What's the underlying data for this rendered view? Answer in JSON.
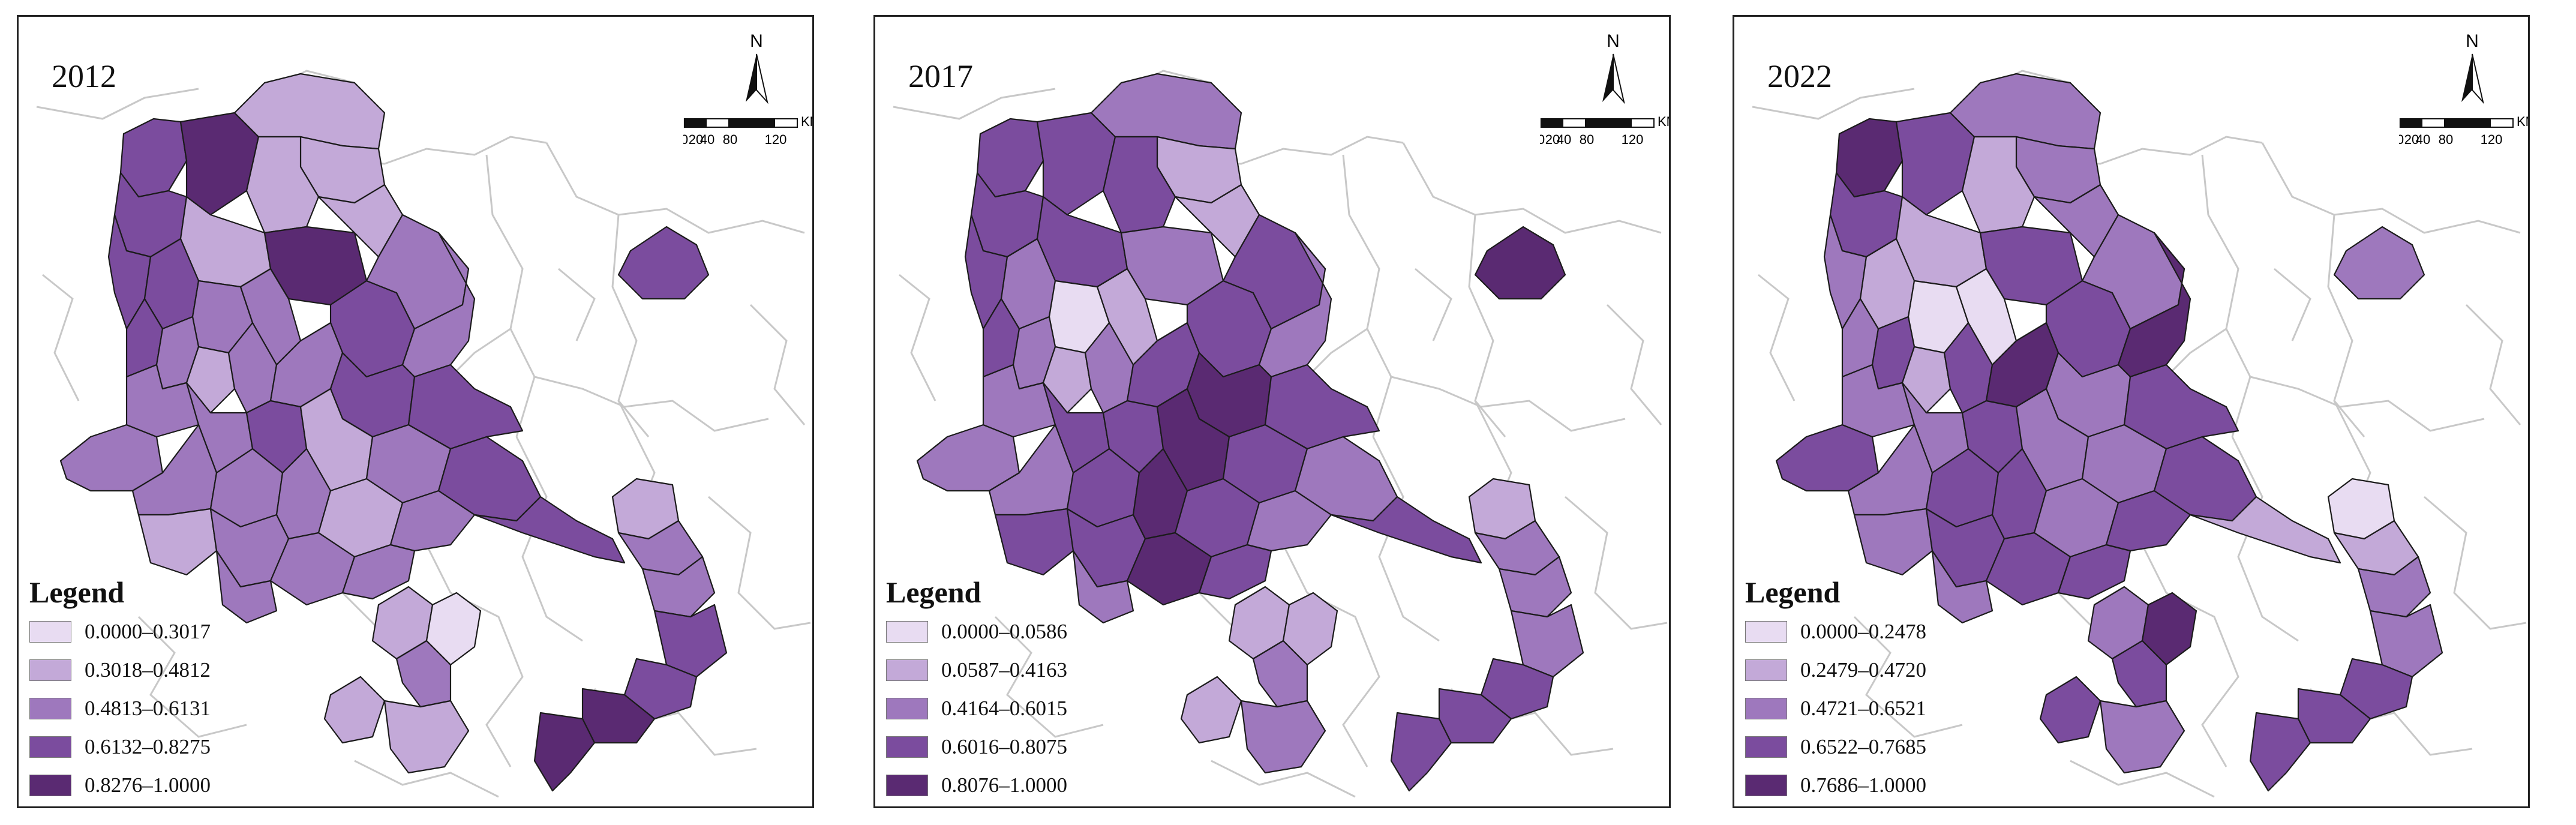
{
  "panels": [
    {
      "year": "2012",
      "legend_title": "Legend",
      "legend": [
        "0.0000–0.3017",
        "0.3018–0.4812",
        "0.4813–0.6131",
        "0.6132–0.8275",
        "0.8276–1.0000"
      ]
    },
    {
      "year": "2017",
      "legend_title": "Legend",
      "legend": [
        "0.0000–0.0586",
        "0.0587–0.4163",
        "0.4164–0.6015",
        "0.6016–0.8075",
        "0.8076–1.0000"
      ]
    },
    {
      "year": "2022",
      "legend_title": "Legend",
      "legend": [
        "0.0000–0.2478",
        "0.2479–0.4720",
        "0.4721–0.6521",
        "0.6522–0.7685",
        "0.7686–1.0000"
      ]
    }
  ],
  "north_label": "N",
  "scale_unit": "KM",
  "scale_ticks": [
    "0",
    "20",
    "40",
    "80",
    "120"
  ],
  "class_colors": [
    "#e8dcf2",
    "#c3a9d8",
    "#9e78bd",
    "#7b4c9e",
    "#5a2a72"
  ],
  "boundary_color": "#c8c8c8",
  "frame_color": "#222222"
}
